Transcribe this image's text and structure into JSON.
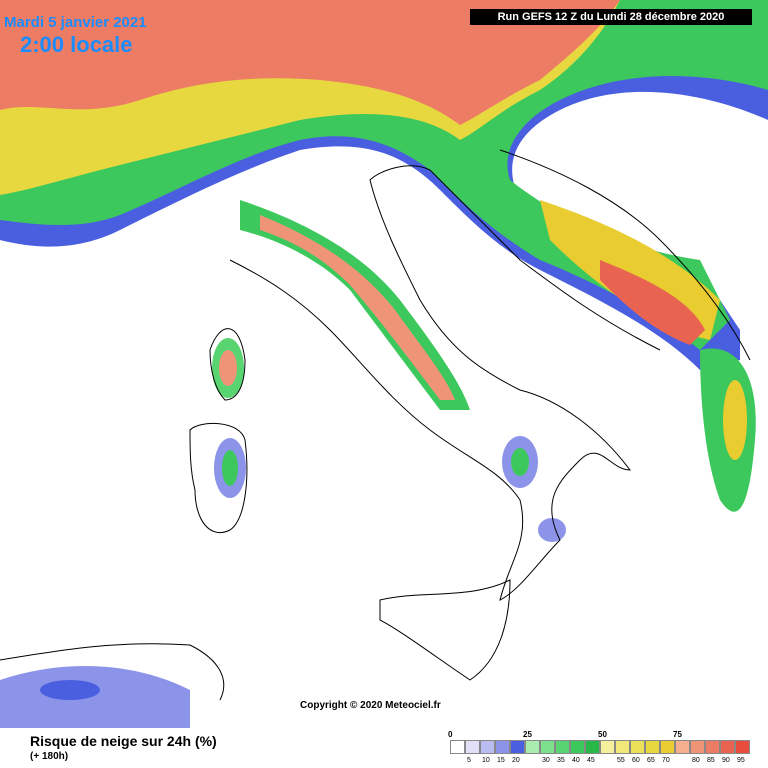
{
  "header": {
    "date": "Mardi 5 janvier 2021",
    "time": "2:00 locale",
    "run": "Run GEFS 12 Z du Lundi 28 décembre 2020"
  },
  "copyright": "Copyright © 2020 Meteociel.fr",
  "footer": {
    "title": "Risque de neige sur 24h (%)",
    "lead": "(+ 180h)"
  },
  "legend": {
    "colors": [
      "#ffffff",
      "#e0e0f8",
      "#b8bcf0",
      "#8c94ea",
      "#4a5ee0",
      "#a8ecb0",
      "#7ce08c",
      "#58d470",
      "#3cc85c",
      "#28b848",
      "#f4f09c",
      "#f0e878",
      "#ece058",
      "#e8d840",
      "#e8cc30",
      "#f4b08c",
      "#f09478",
      "#ec7c64",
      "#e86450",
      "#e84c3c"
    ],
    "top_labels": [
      0,
      25,
      50,
      75
    ],
    "bottom_labels": [
      5,
      10,
      15,
      20,
      30,
      35,
      40,
      45,
      55,
      60,
      65,
      70,
      80,
      85,
      90,
      95
    ]
  }
}
